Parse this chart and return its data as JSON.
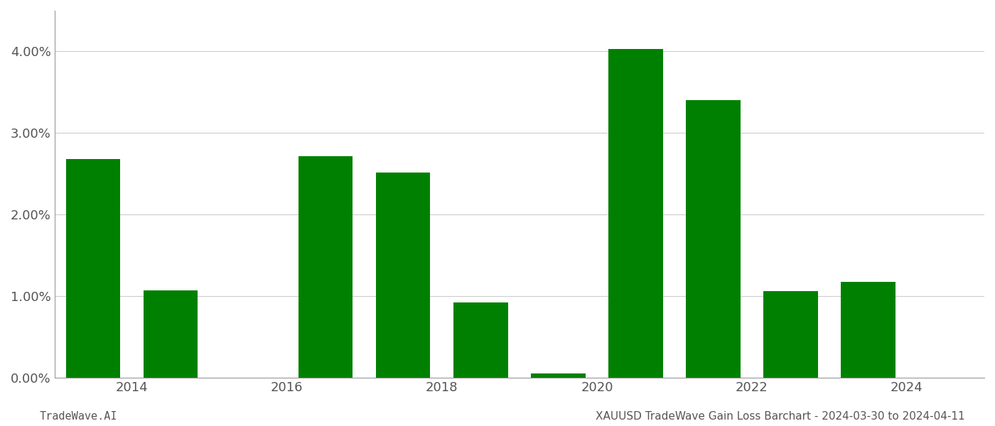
{
  "years": [
    2013,
    2014,
    2015,
    2016,
    2017,
    2018,
    2019,
    2020,
    2021,
    2022,
    2023
  ],
  "values": [
    0.0268,
    0.0107,
    0.0,
    0.0272,
    0.0252,
    0.0092,
    0.0005,
    0.0403,
    0.034,
    0.0106,
    0.0118
  ],
  "bar_color": "#008000",
  "background_color": "#ffffff",
  "grid_color": "#cccccc",
  "grid_linewidth": 0.8,
  "ylabel_color": "#555555",
  "xlabel_color": "#555555",
  "footer_left": "TradeWave.AI",
  "footer_right": "XAUUSD TradeWave Gain Loss Barchart - 2024-03-30 to 2024-04-11",
  "footer_color": "#555555",
  "footer_fontsize": 11,
  "ylim": [
    0,
    0.045
  ],
  "ytick_vals": [
    0.0,
    0.01,
    0.02,
    0.03,
    0.04
  ],
  "ytick_labels": [
    "0.00%",
    "1.00%",
    "2.00%",
    "3.00%",
    "4.00%"
  ],
  "xtick_labels": [
    "2014",
    "2016",
    "2018",
    "2020",
    "2022",
    "2024"
  ],
  "bar_width": 0.7,
  "left_spine_color": "#999999",
  "bottom_spine_color": "#999999"
}
